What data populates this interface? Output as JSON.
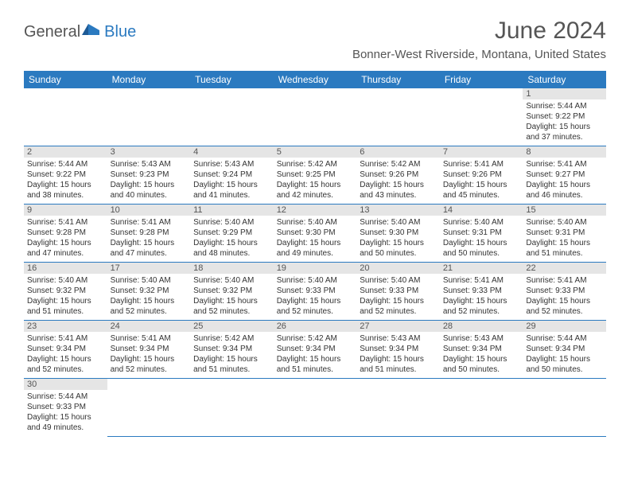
{
  "logo": {
    "general": "General",
    "blue": "Blue"
  },
  "title": "June 2024",
  "location": "Bonner-West Riverside, Montana, United States",
  "colors": {
    "header_bg": "#2b7ac0",
    "header_text": "#ffffff",
    "row_divider": "#2b7ac0",
    "daynum_bg": "#e5e5e5",
    "text": "#333333",
    "title_text": "#555555"
  },
  "weekdays": [
    "Sunday",
    "Monday",
    "Tuesday",
    "Wednesday",
    "Thursday",
    "Friday",
    "Saturday"
  ],
  "first_weekday_index": 6,
  "days": [
    {
      "n": 1,
      "sunrise": "5:44 AM",
      "sunset": "9:22 PM",
      "daylight": "15 hours and 37 minutes."
    },
    {
      "n": 2,
      "sunrise": "5:44 AM",
      "sunset": "9:22 PM",
      "daylight": "15 hours and 38 minutes."
    },
    {
      "n": 3,
      "sunrise": "5:43 AM",
      "sunset": "9:23 PM",
      "daylight": "15 hours and 40 minutes."
    },
    {
      "n": 4,
      "sunrise": "5:43 AM",
      "sunset": "9:24 PM",
      "daylight": "15 hours and 41 minutes."
    },
    {
      "n": 5,
      "sunrise": "5:42 AM",
      "sunset": "9:25 PM",
      "daylight": "15 hours and 42 minutes."
    },
    {
      "n": 6,
      "sunrise": "5:42 AM",
      "sunset": "9:26 PM",
      "daylight": "15 hours and 43 minutes."
    },
    {
      "n": 7,
      "sunrise": "5:41 AM",
      "sunset": "9:26 PM",
      "daylight": "15 hours and 45 minutes."
    },
    {
      "n": 8,
      "sunrise": "5:41 AM",
      "sunset": "9:27 PM",
      "daylight": "15 hours and 46 minutes."
    },
    {
      "n": 9,
      "sunrise": "5:41 AM",
      "sunset": "9:28 PM",
      "daylight": "15 hours and 47 minutes."
    },
    {
      "n": 10,
      "sunrise": "5:41 AM",
      "sunset": "9:28 PM",
      "daylight": "15 hours and 47 minutes."
    },
    {
      "n": 11,
      "sunrise": "5:40 AM",
      "sunset": "9:29 PM",
      "daylight": "15 hours and 48 minutes."
    },
    {
      "n": 12,
      "sunrise": "5:40 AM",
      "sunset": "9:30 PM",
      "daylight": "15 hours and 49 minutes."
    },
    {
      "n": 13,
      "sunrise": "5:40 AM",
      "sunset": "9:30 PM",
      "daylight": "15 hours and 50 minutes."
    },
    {
      "n": 14,
      "sunrise": "5:40 AM",
      "sunset": "9:31 PM",
      "daylight": "15 hours and 50 minutes."
    },
    {
      "n": 15,
      "sunrise": "5:40 AM",
      "sunset": "9:31 PM",
      "daylight": "15 hours and 51 minutes."
    },
    {
      "n": 16,
      "sunrise": "5:40 AM",
      "sunset": "9:32 PM",
      "daylight": "15 hours and 51 minutes."
    },
    {
      "n": 17,
      "sunrise": "5:40 AM",
      "sunset": "9:32 PM",
      "daylight": "15 hours and 52 minutes."
    },
    {
      "n": 18,
      "sunrise": "5:40 AM",
      "sunset": "9:32 PM",
      "daylight": "15 hours and 52 minutes."
    },
    {
      "n": 19,
      "sunrise": "5:40 AM",
      "sunset": "9:33 PM",
      "daylight": "15 hours and 52 minutes."
    },
    {
      "n": 20,
      "sunrise": "5:40 AM",
      "sunset": "9:33 PM",
      "daylight": "15 hours and 52 minutes."
    },
    {
      "n": 21,
      "sunrise": "5:41 AM",
      "sunset": "9:33 PM",
      "daylight": "15 hours and 52 minutes."
    },
    {
      "n": 22,
      "sunrise": "5:41 AM",
      "sunset": "9:33 PM",
      "daylight": "15 hours and 52 minutes."
    },
    {
      "n": 23,
      "sunrise": "5:41 AM",
      "sunset": "9:34 PM",
      "daylight": "15 hours and 52 minutes."
    },
    {
      "n": 24,
      "sunrise": "5:41 AM",
      "sunset": "9:34 PM",
      "daylight": "15 hours and 52 minutes."
    },
    {
      "n": 25,
      "sunrise": "5:42 AM",
      "sunset": "9:34 PM",
      "daylight": "15 hours and 51 minutes."
    },
    {
      "n": 26,
      "sunrise": "5:42 AM",
      "sunset": "9:34 PM",
      "daylight": "15 hours and 51 minutes."
    },
    {
      "n": 27,
      "sunrise": "5:43 AM",
      "sunset": "9:34 PM",
      "daylight": "15 hours and 51 minutes."
    },
    {
      "n": 28,
      "sunrise": "5:43 AM",
      "sunset": "9:34 PM",
      "daylight": "15 hours and 50 minutes."
    },
    {
      "n": 29,
      "sunrise": "5:44 AM",
      "sunset": "9:34 PM",
      "daylight": "15 hours and 50 minutes."
    },
    {
      "n": 30,
      "sunrise": "5:44 AM",
      "sunset": "9:33 PM",
      "daylight": "15 hours and 49 minutes."
    }
  ],
  "labels": {
    "sunrise": "Sunrise:",
    "sunset": "Sunset:",
    "daylight": "Daylight:"
  }
}
